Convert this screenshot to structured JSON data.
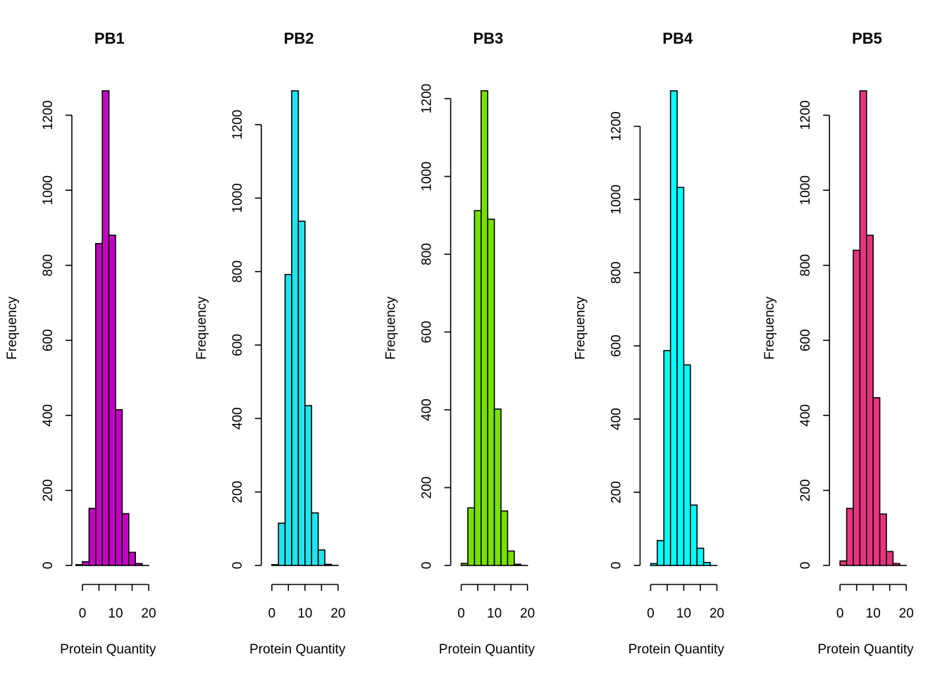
{
  "chart_data": [
    {
      "type": "bar",
      "title": "PB1",
      "xlabel": "Protein Quantity",
      "ylabel": "Frequency",
      "color": "#C200C2",
      "bin_edges": [
        -2,
        0,
        2,
        4,
        6,
        8,
        10,
        12,
        14,
        16,
        18,
        20
      ],
      "values": [
        2,
        10,
        152,
        858,
        1265,
        880,
        415,
        138,
        35,
        5,
        0
      ],
      "xticks": [
        0,
        10,
        20
      ],
      "yticks": [
        0,
        200,
        400,
        600,
        800,
        1000,
        1200
      ],
      "ylim": [
        0,
        1265
      ]
    },
    {
      "type": "bar",
      "title": "PB2",
      "xlabel": "Protein Quantity",
      "ylabel": "Frequency",
      "color": "#22E4EE",
      "bin_edges": [
        0,
        2,
        4,
        6,
        8,
        10,
        12,
        14,
        16,
        18,
        20
      ],
      "values": [
        2,
        115,
        792,
        1292,
        937,
        435,
        143,
        42,
        3,
        0
      ],
      "xticks": [
        0,
        10,
        20
      ],
      "yticks": [
        0,
        200,
        400,
        600,
        800,
        1000,
        1200
      ],
      "ylim": [
        0,
        1292
      ]
    },
    {
      "type": "bar",
      "title": "PB3",
      "xlabel": "Protein Quantity",
      "ylabel": "Frequency",
      "color": "#77E000",
      "bin_edges": [
        0,
        2,
        4,
        6,
        8,
        10,
        12,
        14,
        16,
        18,
        20
      ],
      "values": [
        5,
        148,
        912,
        1220,
        890,
        402,
        140,
        37,
        3,
        0
      ],
      "xticks": [
        0,
        10,
        20
      ],
      "yticks": [
        0,
        200,
        400,
        600,
        800,
        1000,
        1200
      ],
      "ylim": [
        0,
        1220
      ]
    },
    {
      "type": "bar",
      "title": "PB4",
      "xlabel": "Protein Quantity",
      "ylabel": "Frequency",
      "color": "#00FFFF",
      "bin_edges": [
        0,
        2,
        4,
        6,
        8,
        10,
        12,
        14,
        16,
        18,
        20
      ],
      "values": [
        5,
        68,
        587,
        1297,
        1033,
        548,
        165,
        47,
        8,
        0
      ],
      "xticks": [
        0,
        10,
        20
      ],
      "yticks": [
        0,
        200,
        400,
        600,
        800,
        1000,
        1200
      ],
      "ylim": [
        0,
        1297
      ]
    },
    {
      "type": "bar",
      "title": "PB5",
      "xlabel": "Protein Quantity",
      "ylabel": "Frequency",
      "color": "#E8347F",
      "bin_edges": [
        0,
        2,
        4,
        6,
        8,
        10,
        12,
        14,
        16,
        18,
        20
      ],
      "values": [
        12,
        152,
        840,
        1265,
        880,
        447,
        137,
        37,
        5,
        0
      ],
      "xticks": [
        0,
        10,
        20
      ],
      "yticks": [
        0,
        200,
        400,
        600,
        800,
        1000,
        1200
      ],
      "ylim": [
        0,
        1265
      ]
    }
  ]
}
